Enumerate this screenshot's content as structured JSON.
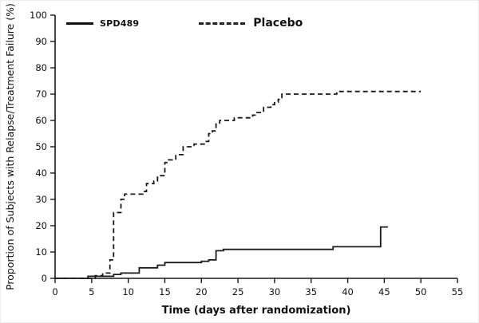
{
  "chart_data": {
    "type": "line",
    "subtype": "kaplan-meier-step",
    "title": "",
    "xlabel": "Time (days after randomization)",
    "ylabel": "Proportion of Subjects with Relapse/Treatment Failure (%)",
    "xlim": [
      0,
      55
    ],
    "ylim": [
      0,
      100
    ],
    "xticks": [
      0,
      5,
      10,
      15,
      20,
      25,
      30,
      35,
      40,
      45,
      50,
      55
    ],
    "yticks": [
      0,
      10,
      20,
      30,
      40,
      50,
      60,
      70,
      80,
      90,
      100
    ],
    "grid": false,
    "legend_position": "top-inside",
    "line_color": "#1a1a1a",
    "series": [
      {
        "name": "SPD489",
        "dash": "solid",
        "color": "#1a1a1a",
        "points": [
          [
            0,
            0
          ],
          [
            4.5,
            0.8
          ],
          [
            8,
            1.5
          ],
          [
            9,
            2
          ],
          [
            11.5,
            4
          ],
          [
            14,
            5
          ],
          [
            15,
            6
          ],
          [
            20,
            6.5
          ],
          [
            21,
            7
          ],
          [
            22,
            10.5
          ],
          [
            23,
            11
          ],
          [
            38,
            12
          ],
          [
            44.5,
            19.5
          ],
          [
            45.5,
            19.5
          ]
        ]
      },
      {
        "name": "Placebo",
        "dash": "dashed",
        "color": "#1a1a1a",
        "points": [
          [
            0,
            0
          ],
          [
            5.5,
            1
          ],
          [
            6.5,
            2
          ],
          [
            7.5,
            7
          ],
          [
            8,
            25
          ],
          [
            9,
            30
          ],
          [
            9.5,
            32
          ],
          [
            12,
            33
          ],
          [
            12.5,
            36
          ],
          [
            13.5,
            37
          ],
          [
            14,
            39
          ],
          [
            15,
            44
          ],
          [
            15.5,
            45
          ],
          [
            16.5,
            47
          ],
          [
            17.5,
            50
          ],
          [
            19,
            51
          ],
          [
            20.5,
            52
          ],
          [
            21,
            55
          ],
          [
            21.5,
            56
          ],
          [
            22,
            59
          ],
          [
            22.5,
            60
          ],
          [
            24.5,
            61
          ],
          [
            27,
            62
          ],
          [
            27.5,
            63
          ],
          [
            28.5,
            65
          ],
          [
            29.5,
            66
          ],
          [
            30,
            67
          ],
          [
            30.5,
            68
          ],
          [
            31,
            70
          ],
          [
            34,
            70
          ],
          [
            38.5,
            71
          ],
          [
            50,
            71
          ]
        ]
      }
    ]
  }
}
